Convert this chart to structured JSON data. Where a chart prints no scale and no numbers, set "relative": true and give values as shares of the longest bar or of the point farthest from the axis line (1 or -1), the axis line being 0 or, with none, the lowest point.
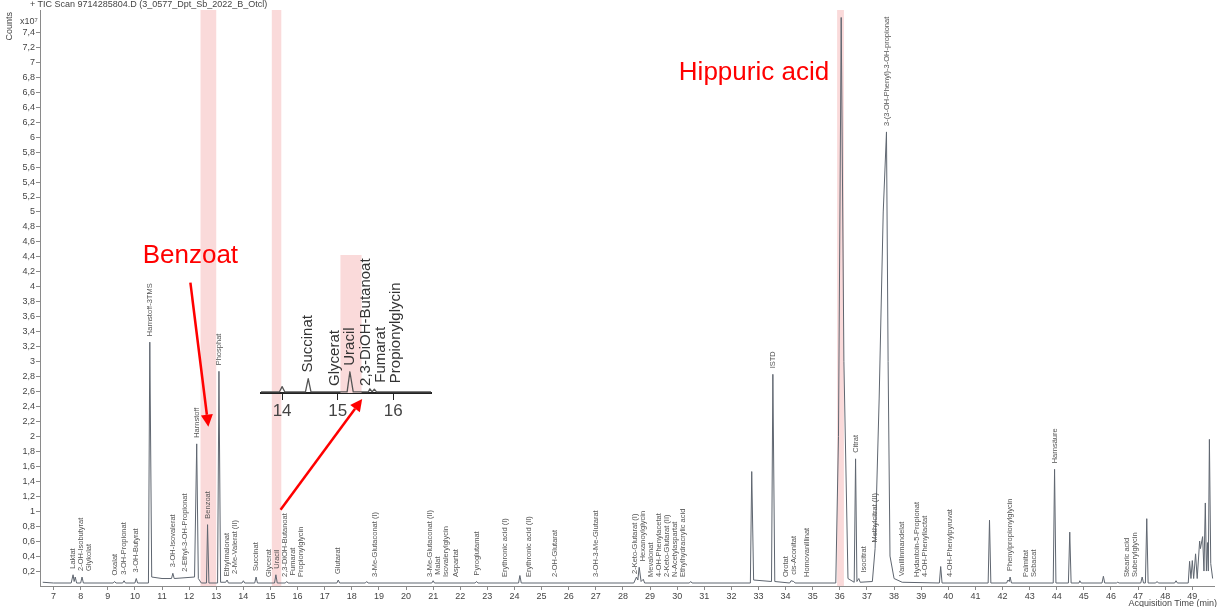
{
  "chart_data": [
    {
      "type": "line",
      "title": "+ TIC Scan 9714285804.D (3_0577_Dpt_Sb_2022_B_Otcl)",
      "xlabel": "Acquisition Time (min)",
      "ylabel": "Counts",
      "xlim": [
        6.5,
        49.8
      ],
      "xticks": [
        7,
        8,
        9,
        10,
        11,
        12,
        13,
        14,
        15,
        16,
        17,
        18,
        19,
        20,
        21,
        22,
        23,
        24,
        25,
        26,
        27,
        28,
        29,
        30,
        31,
        32,
        33,
        34,
        35,
        36,
        37,
        38,
        39,
        40,
        41,
        42,
        43,
        44,
        45,
        46,
        47,
        48,
        49
      ],
      "ylim": [
        0,
        7.7
      ],
      "yticks": [
        {
          "value": 0.2,
          "label": "0,2"
        },
        {
          "value": 0.4,
          "label": "0,4"
        },
        {
          "value": 0.6,
          "label": "0,6"
        },
        {
          "value": 0.8,
          "label": "0,8"
        },
        1,
        {
          "value": 1.2,
          "label": "1,2"
        },
        {
          "value": 1.4,
          "label": "1,4"
        },
        {
          "value": 1.6,
          "label": "1,6"
        },
        {
          "value": 1.8,
          "label": "1,8"
        },
        2,
        {
          "value": 2.2,
          "label": "2,2"
        },
        {
          "value": 2.4,
          "label": "2,4"
        },
        {
          "value": 2.6,
          "label": "2,6"
        },
        {
          "value": 2.8,
          "label": "2,8"
        },
        3,
        {
          "value": 3.2,
          "label": "3,2"
        },
        {
          "value": 3.4,
          "label": "3,4"
        },
        {
          "value": 3.6,
          "label": "3,6"
        },
        {
          "value": 3.8,
          "label": "3,8"
        },
        4,
        {
          "value": 4.2,
          "label": "4,2"
        },
        {
          "value": 4.4,
          "label": "4,4"
        },
        {
          "value": 4.6,
          "label": "4,6"
        },
        {
          "value": 4.8,
          "label": "4,8"
        },
        5,
        {
          "value": 5.2,
          "label": "5,2"
        },
        {
          "value": 5.4,
          "label": "5,4"
        },
        {
          "value": 5.6,
          "label": "5,6"
        },
        {
          "value": 5.8,
          "label": "5,8"
        },
        6,
        {
          "value": 6.2,
          "label": "6,2"
        },
        {
          "value": 6.4,
          "label": "6,4"
        },
        {
          "value": 6.6,
          "label": "6,6"
        },
        {
          "value": 6.8,
          "label": "6,8"
        },
        7,
        {
          "value": 7.2,
          "label": "7,2"
        },
        {
          "value": 7.4,
          "label": "7,4"
        }
      ],
      "legend": false,
      "marker": "none",
      "line_style": "solid",
      "series": [
        {
          "color": "#5f6670",
          "x": [
            6.6,
            7.0,
            7.65,
            7.72,
            7.76,
            7.8,
            7.85,
            8.0,
            8.05,
            8.1,
            9.2,
            9.25,
            9.3,
            9.55,
            9.6,
            9.65,
            10.0,
            10.05,
            10.1,
            10.5,
            10.55,
            10.62,
            11.0,
            11.35,
            11.4,
            11.45,
            12.2,
            12.28,
            12.34,
            12.45,
            12.64,
            12.68,
            12.73,
            13.05,
            13.1,
            13.16,
            13.35,
            13.4,
            13.45,
            13.95,
            14.0,
            14.05,
            14.42,
            14.47,
            14.52,
            15.15,
            15.2,
            15.25,
            15.55,
            15.6,
            15.65,
            17.45,
            17.5,
            17.55,
            18.5,
            18.55,
            18.6,
            20.95,
            21.0,
            21.05,
            22.55,
            22.6,
            22.65,
            24.15,
            24.2,
            24.25,
            28.4,
            28.5,
            28.55,
            28.6,
            28.67,
            28.75,
            28.8,
            30.45,
            30.5,
            30.55,
            32.7,
            32.75,
            32.82,
            33.48,
            33.53,
            33.6,
            34.15,
            34.2,
            34.3,
            34.35,
            35.85,
            35.95,
            36.05,
            36.15,
            36.3,
            36.53,
            36.58,
            36.63,
            36.7,
            36.75,
            37.2,
            37.3,
            37.45,
            37.6,
            37.72,
            37.78,
            37.85,
            38.0,
            38.3,
            39.67,
            39.72,
            39.77,
            41.47,
            41.52,
            41.57,
            42.15,
            42.2,
            42.25,
            42.28,
            42.33,
            43.87,
            43.92,
            43.97,
            44.43,
            44.48,
            44.53,
            44.82,
            44.85,
            44.9,
            45.67,
            45.72,
            45.77,
            46.2,
            46.25,
            46.3,
            47.1,
            47.15,
            47.2,
            47.27,
            47.32,
            47.37,
            47.65,
            47.7,
            47.75,
            48.35,
            48.4,
            48.45,
            48.85,
            48.9,
            48.95,
            49.0,
            49.05,
            49.12,
            49.18,
            49.27,
            49.3,
            49.38,
            49.43,
            49.48,
            49.52,
            49.56,
            49.59,
            49.63,
            49.68,
            49.75
          ],
          "values": [
            0.05,
            0.04,
            0.04,
            0.15,
            0.06,
            0.12,
            0.04,
            0.04,
            0.12,
            0.04,
            0.04,
            0.06,
            0.04,
            0.04,
            0.07,
            0.04,
            0.04,
            0.1,
            0.04,
            0.04,
            3.26,
            0.12,
            0.1,
            0.1,
            0.17,
            0.1,
            0.12,
            1.9,
            0.1,
            0.04,
            0.04,
            0.82,
            0.04,
            0.04,
            2.87,
            0.05,
            0.05,
            0.08,
            0.04,
            0.04,
            0.07,
            0.04,
            0.04,
            0.12,
            0.04,
            0.04,
            0.15,
            0.04,
            0.04,
            0.06,
            0.04,
            0.04,
            0.08,
            0.04,
            0.04,
            0.06,
            0.04,
            0.04,
            0.07,
            0.04,
            0.04,
            0.06,
            0.04,
            0.04,
            0.14,
            0.04,
            0.04,
            0.12,
            0.08,
            0.25,
            0.06,
            0.09,
            0.04,
            0.04,
            0.06,
            0.04,
            0.04,
            1.53,
            0.08,
            0.06,
            2.83,
            0.06,
            0.04,
            0.07,
            0.06,
            0.04,
            0.04,
            2.0,
            7.6,
            3.0,
            0.1,
            0.05,
            1.7,
            0.06,
            0.1,
            0.05,
            0.06,
            0.5,
            2.5,
            5.0,
            6.07,
            3.0,
            0.4,
            0.1,
            0.05,
            0.04,
            0.26,
            0.04,
            0.04,
            0.88,
            0.04,
            0.04,
            0.08,
            0.06,
            0.12,
            0.04,
            0.04,
            1.56,
            0.04,
            0.04,
            0.72,
            0.04,
            0.04,
            0.07,
            0.04,
            0.04,
            0.13,
            0.04,
            0.04,
            0.05,
            0.04,
            0.04,
            0.12,
            0.04,
            0.04,
            0.9,
            0.04,
            0.04,
            0.06,
            0.04,
            0.04,
            0.07,
            0.04,
            0.04,
            0.33,
            0.1,
            0.34,
            0.1,
            0.43,
            0.1,
            0.6,
            0.5,
            0.66,
            0.2,
            1.11,
            0.2,
            0.58,
            0.2,
            1.96,
            0.3,
            0.1
          ]
        }
      ],
      "bands": [
        {
          "axis": "x",
          "from": 12.42,
          "to": 13.0,
          "label": "Benzoat",
          "color": "#fadada"
        },
        {
          "axis": "x",
          "from": 15.05,
          "to": 15.4,
          "color": "#fadada"
        },
        {
          "axis": "x",
          "from": 35.9,
          "to": 36.15,
          "label": "Hippuric acid",
          "color": "#fadada"
        }
      ],
      "annotations": [
        "x10⁷",
        {
          "text": "Laktat",
          "x": 7.72,
          "y": 0.15
        },
        {
          "text": "2-OH-Isobutyrat",
          "x": 7.8,
          "y": 0.12
        },
        {
          "text": "Glykolat",
          "x": 8.05,
          "y": 0.12
        },
        {
          "text": "Oxalat",
          "x": 9.25,
          "y": 0.06
        },
        {
          "text": "3-OH-Propionat",
          "x": 9.6,
          "y": 0.07
        },
        {
          "text": "3-OH-Butyrat",
          "x": 10.05,
          "y": 0.1
        },
        {
          "text": "Harnstoff-3TMS",
          "x": 10.55,
          "y": 3.26
        },
        {
          "text": "3-OH-Isovalerat",
          "x": 11.4,
          "y": 0.17
        },
        {
          "text": "2-Ethyl-3-OH-Propionat",
          "x": 11.85,
          "y": 0.11
        },
        {
          "text": "Harnstoff",
          "x": 12.28,
          "y": 1.9
        },
        {
          "text": "Benzoat",
          "x": 12.68,
          "y": 0.82
        },
        {
          "text": "Phosphat",
          "x": 13.1,
          "y": 2.87
        },
        {
          "text": "Ethylmalonat",
          "x": 13.35,
          "y": 0.05
        },
        {
          "text": "2-Me-Valerat (II)",
          "x": 13.4,
          "y": 0.08
        },
        {
          "text": "Succinat",
          "x": 14.47,
          "y": 0.12
        },
        {
          "text": "Glycerat",
          "x": 14.95,
          "y": 0.04
        },
        {
          "text": "Uracil",
          "x": 15.2,
          "y": 0.15
        },
        {
          "text": "2,3-DiOH-Butanoat",
          "x": 15.5,
          "y": 0.04
        },
        {
          "text": "Fumarat",
          "x": 15.6,
          "y": 0.06
        },
        {
          "text": "Propionylglycin",
          "x": 15.65,
          "y": 0.04
        },
        {
          "text": "Glutarat",
          "x": 17.5,
          "y": 0.08
        },
        {
          "text": "3-Me-Glutaconat (I)",
          "x": 18.85,
          "y": 0.04
        },
        {
          "text": "3-Me-Glutaconat (II)",
          "x": 20.9,
          "y": 0.04
        },
        {
          "text": "Malat",
          "x": 21.0,
          "y": 0.07
        },
        {
          "text": "Isovalerylglycin",
          "x": 21.3,
          "y": 0.04
        },
        {
          "text": "Aspartat",
          "x": 21.85,
          "y": 0.04
        },
        {
          "text": "Pyroglutamat",
          "x": 22.6,
          "y": 0.06
        },
        {
          "text": "Erythronic acid (I)",
          "x": 23.65,
          "y": 0.04
        },
        {
          "text": "Erythronic acid (II)",
          "x": 24.55,
          "y": 0.04
        },
        {
          "text": "2-OH-Glutarat",
          "x": 25.5,
          "y": 0.04
        },
        {
          "text": "3-OH-3-Me-Glutarat",
          "x": 27.0,
          "y": 0.04
        },
        {
          "text": "2-Keto-Glutarat (I)",
          "x": 28.45,
          "y": 0.08
        },
        {
          "text": "Hexanoylglycin",
          "x": 28.6,
          "y": 0.25
        },
        {
          "text": "Mevalonat",
          "x": 28.8,
          "y": 0.04
        },
        {
          "text": "4-OH-Phenylacetat",
          "x": 29.05,
          "y": 0.04
        },
        {
          "text": "2-Keto-Glutarat (II)",
          "x": 29.6,
          "y": 0.04
        },
        {
          "text": "N-Acetylaspartat",
          "x": 29.9,
          "y": 0.04
        },
        {
          "text": "Ethylhydracrylic acid",
          "x": 30.05,
          "y": 0.04
        },
        {
          "text": "ISTD",
          "x": 33.53,
          "y": 2.83
        },
        {
          "text": "Orotat",
          "x": 34.0,
          "y": 0.04
        },
        {
          "text": "cis-Aconitat",
          "x": 34.2,
          "y": 0.07
        },
        {
          "text": "Homovanillinat",
          "x": 34.8,
          "y": 0.04
        },
        {
          "text": "Citrat",
          "x": 36.58,
          "y": 1.7
        },
        {
          "text": "Isocitrat",
          "x": 36.7,
          "y": 0.1
        },
        {
          "text": "Methylcitrat (II)",
          "x": 37.3,
          "y": 0.5
        },
        {
          "text": "3-(3-OH-Phenyl)-3-OH-propionat",
          "x": 37.72,
          "y": 6.07
        },
        {
          "text": "Vanillinmandelat",
          "x": 38.3,
          "y": 0.05
        },
        {
          "text": "Hydantoin-5-Propionat",
          "x": 38.85,
          "y": 0.04
        },
        {
          "text": "4-OH-Phenyllactat",
          "x": 38.95,
          "y": 0.04
        },
        {
          "text": "4-OH-Phenylpyruvat",
          "x": 40.05,
          "y": 0.04
        },
        {
          "text": "Phenylpropionylglycin",
          "x": 42.28,
          "y": 0.12
        },
        {
          "text": "Palmitat",
          "x": 42.85,
          "y": 0.04
        },
        {
          "text": "Sebacat",
          "x": 42.95,
          "y": 0.04
        },
        {
          "text": "Harnsäure",
          "x": 43.92,
          "y": 1.56
        },
        {
          "text": "Stearic acid",
          "x": 46.6,
          "y": 0.04
        },
        {
          "text": "Suberylglycin",
          "x": 46.7,
          "y": 0.04
        }
      ]
    },
    {
      "type": "line",
      "relative": true,
      "xlim": [
        13.62,
        16.68
      ],
      "xticks": [
        14,
        15,
        16
      ],
      "legend": false,
      "marker": "none",
      "line_style": "solid",
      "series": [
        {
          "color": "#555555",
          "x": [
            13.62,
            13.95,
            14.0,
            14.05,
            14.42,
            14.47,
            14.52,
            15.17,
            15.22,
            15.28,
            15.55,
            15.58,
            15.62,
            15.66,
            15.7,
            16.68
          ],
          "values": [
            0.05,
            0.05,
            0.3,
            0.05,
            0.05,
            0.68,
            0.05,
            0.05,
            1,
            0.05,
            0.05,
            0.2,
            0.05,
            0.18,
            0.05,
            0.05
          ]
        }
      ],
      "bands": [
        {
          "axis": "x",
          "from": 15.05,
          "to": 15.43,
          "color": "#fadada"
        }
      ],
      "annotations": [
        {
          "text": "Succinat",
          "x": 14.47,
          "y": 0.68
        },
        {
          "text": "Glycerat",
          "x": 14.95,
          "y": 0.05
        },
        {
          "text": "Uracil",
          "x": 15.22,
          "y": 1
        },
        {
          "text": "2,3-DiOH-Butanoat",
          "x": 15.5,
          "y": 0.05
        },
        {
          "text": "Fumarat",
          "x": 15.58,
          "y": 0.2
        },
        {
          "text": "Propionylglycin",
          "x": 15.66,
          "y": 0.18
        }
      ]
    }
  ]
}
